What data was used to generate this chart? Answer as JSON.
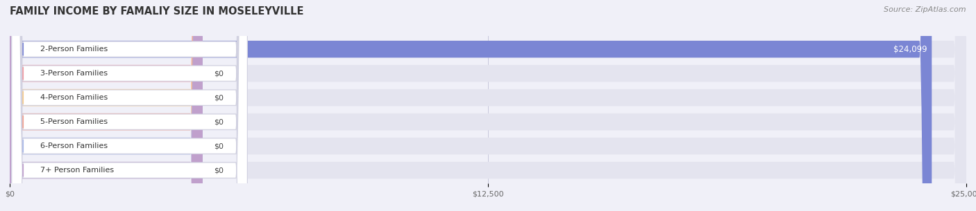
{
  "title": "FAMILY INCOME BY FAMALIY SIZE IN MOSELEYVILLE",
  "source": "Source: ZipAtlas.com",
  "categories": [
    "2-Person Families",
    "3-Person Families",
    "4-Person Families",
    "5-Person Families",
    "6-Person Families",
    "7+ Person Families"
  ],
  "values": [
    24099,
    0,
    0,
    0,
    0,
    0
  ],
  "bar_colors": [
    "#7b86d4",
    "#f09aa0",
    "#f5c98a",
    "#f0a090",
    "#a8b8e8",
    "#c0a0cc"
  ],
  "xlim_max": 25000,
  "xticks": [
    0,
    12500,
    25000
  ],
  "xtick_labels": [
    "$0",
    "$12,500",
    "$25,000"
  ],
  "background_color": "#f0f0f8",
  "row_bg_color": "#e4e4ef",
  "row_alt_color": "#eaeaf3",
  "title_fontsize": 10.5,
  "source_fontsize": 8,
  "label_fontsize": 8,
  "value_label_color": "#ffffff",
  "zero_label_color": "#444444",
  "figsize": [
    14.06,
    3.05
  ],
  "dpi": 100
}
